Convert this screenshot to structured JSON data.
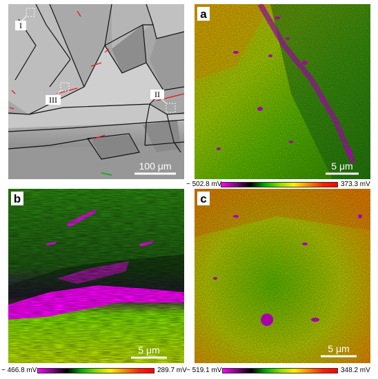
{
  "panels": {
    "overview": {
      "scale_label": "100 μm",
      "regions": [
        "I",
        "II",
        "III"
      ]
    },
    "a": {
      "letter": "a",
      "scale_label": "5 μm",
      "colorbar": {
        "min": "− 502.8 mV",
        "max": "373.3 mV"
      }
    },
    "b": {
      "letter": "b",
      "scale_label": "5 μm",
      "colorbar": {
        "min": "− 466.8 mV",
        "max": "289.7 mV"
      }
    },
    "c": {
      "letter": "c",
      "scale_label": "5 μm",
      "colorbar": {
        "min": "− 519.1 mV",
        "max": "348.2 mV"
      }
    }
  },
  "colors": {
    "gradient": [
      "#ff00ff",
      "#7a0a7a",
      "#000000",
      "#00aa00",
      "#88dd00",
      "#ffee00",
      "#ff8800",
      "#ff2200",
      "#ff0000"
    ]
  }
}
